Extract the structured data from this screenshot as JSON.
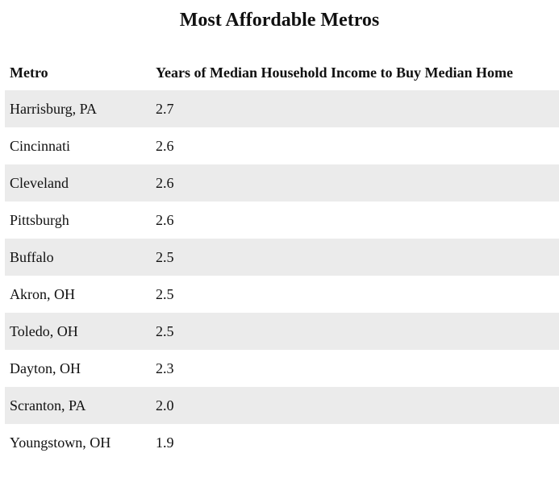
{
  "chart_data": {
    "type": "table",
    "title": "Most Affordable Metros",
    "columns": [
      "Metro",
      "Years of Median Household Income to Buy Median Home"
    ],
    "rows": [
      [
        "Harrisburg, PA",
        "2.7"
      ],
      [
        "Cincinnati",
        "2.6"
      ],
      [
        "Cleveland",
        "2.6"
      ],
      [
        "Pittsburgh",
        "2.6"
      ],
      [
        "Buffalo",
        "2.5"
      ],
      [
        "Akron, OH",
        "2.5"
      ],
      [
        "Toledo, OH",
        "2.5"
      ],
      [
        "Dayton, OH",
        "2.3"
      ],
      [
        "Scranton, PA",
        "2.0"
      ],
      [
        "Youngstown, OH",
        "1.9"
      ]
    ],
    "colors": {
      "stripe": "#ebebeb",
      "background": "#ffffff",
      "text": "#111111"
    }
  }
}
